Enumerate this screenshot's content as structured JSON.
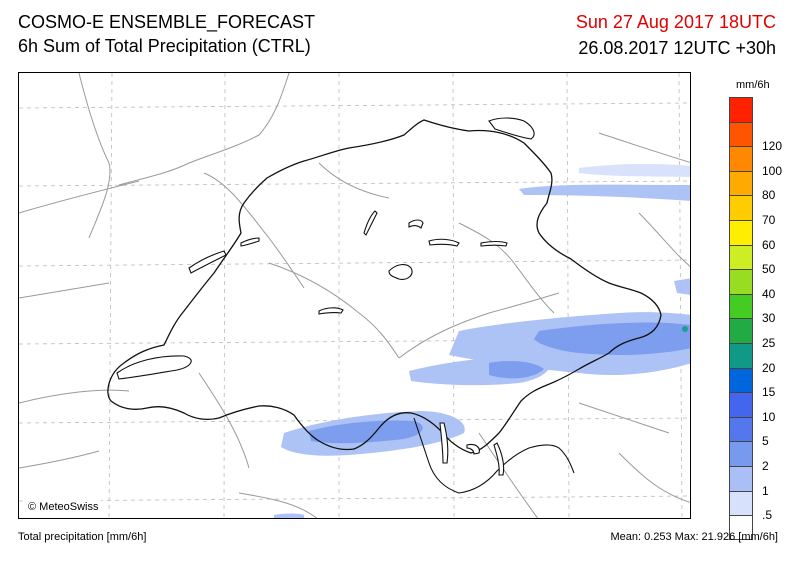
{
  "header": {
    "title_line1": "COSMO-E ENSEMBLE_FORECAST",
    "title_line2": "6h Sum of Total Precipitation (CTRL)",
    "valid_time": "Sun 27 Aug 2017 18UTC",
    "init_time": "26.08.2017 12UTC +30h"
  },
  "map": {
    "copyright": "© MeteoSwiss"
  },
  "legend": {
    "unit": "mm/6h",
    "levels": [
      {
        "label": "",
        "color": "#ff2200"
      },
      {
        "label": "120",
        "color": "#ff5500"
      },
      {
        "label": "100",
        "color": "#ff8800"
      },
      {
        "label": "80",
        "color": "#ffaa00"
      },
      {
        "label": "70",
        "color": "#ffcc00"
      },
      {
        "label": "60",
        "color": "#ffee00"
      },
      {
        "label": "50",
        "color": "#ccee22"
      },
      {
        "label": "40",
        "color": "#99dd22"
      },
      {
        "label": "30",
        "color": "#44cc22"
      },
      {
        "label": "25",
        "color": "#22aa44"
      },
      {
        "label": "20",
        "color": "#119988"
      },
      {
        "label": "15",
        "color": "#0066dd"
      },
      {
        "label": "10",
        "color": "#4466ee"
      },
      {
        "label": "5",
        "color": "#5577ee"
      },
      {
        "label": "2",
        "color": "#7799ee"
      },
      {
        "label": "1",
        "color": "#a9bff5"
      },
      {
        "label": ".5",
        "color": "#d8e1fb"
      },
      {
        "label": "",
        "color": "#ffffff"
      }
    ]
  },
  "footer": {
    "left": "Total precipitation [mm/6h]",
    "stats": "Mean:   0.253 Max:  21.926 [mm/6h]"
  }
}
